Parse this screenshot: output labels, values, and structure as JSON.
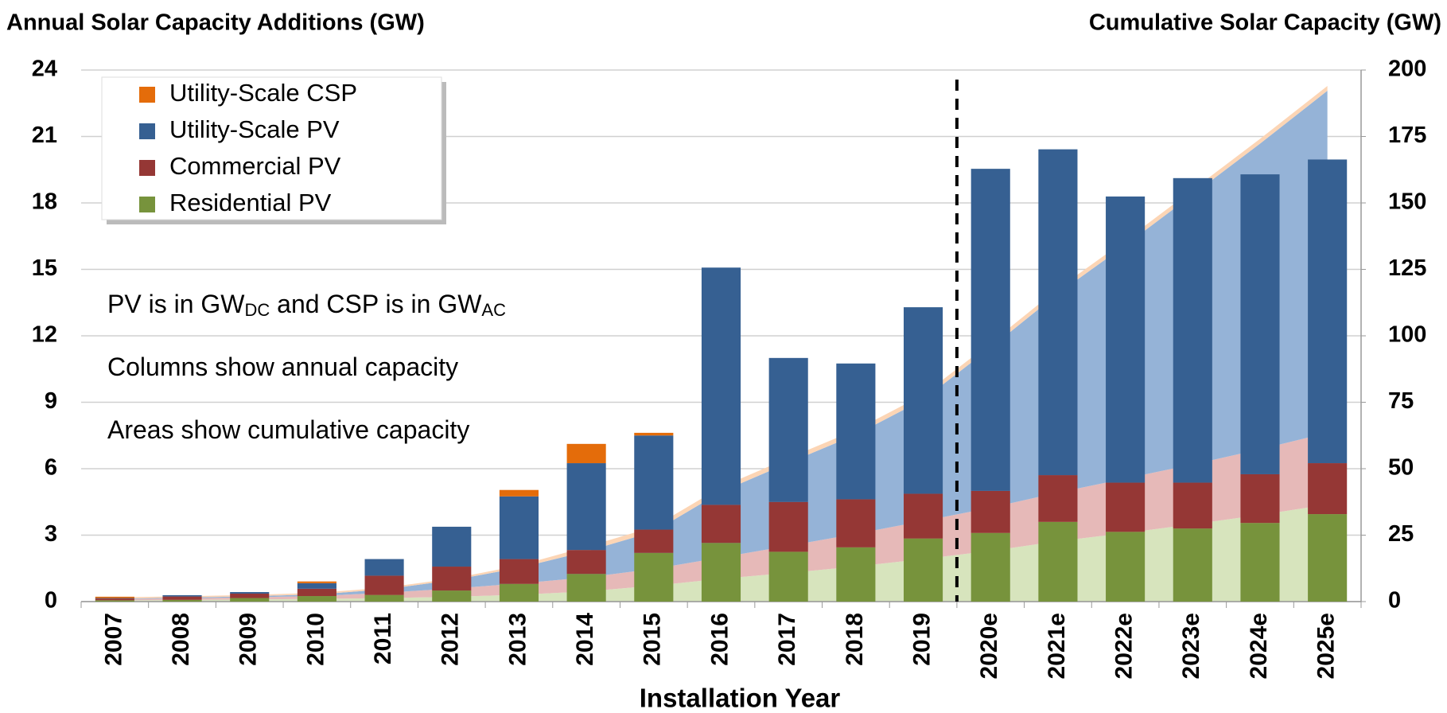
{
  "chart_data": {
    "type": "bar",
    "stacked": true,
    "title": "Annual Solar Capacity Additions (GW)",
    "y2_title": "Cumulative Solar Capacity (GW)",
    "x_label": "Installation Year",
    "annotations": [
      [
        "PV is in GW",
        "DC",
        " and CSP is in GW",
        "AC"
      ],
      [
        "Columns show annual capacity"
      ],
      [
        "Areas show cumulative capacity"
      ]
    ],
    "categories": [
      "2007",
      "2008",
      "2009",
      "2010",
      "2011",
      "2012",
      "2013",
      "2014",
      "2015",
      "2016",
      "2017",
      "2018",
      "2019",
      "2020e",
      "2021e",
      "2022e",
      "2023e",
      "2024e",
      "2025e"
    ],
    "series": [
      {
        "name": "Residential PV",
        "color": "#77933c",
        "values": [
          0.06,
          0.08,
          0.16,
          0.25,
          0.3,
          0.5,
          0.8,
          1.25,
          2.2,
          2.65,
          2.25,
          2.45,
          2.85,
          3.1,
          3.6,
          3.15,
          3.3,
          3.55,
          3.95
        ]
      },
      {
        "name": "Commercial PV",
        "color": "#953735",
        "values": [
          0.08,
          0.15,
          0.2,
          0.33,
          0.87,
          1.08,
          1.12,
          1.08,
          1.05,
          1.72,
          2.25,
          2.17,
          2.02,
          1.9,
          2.11,
          2.22,
          2.07,
          2.2,
          2.3
        ]
      },
      {
        "name": "Utility-Scale PV",
        "color": "#366092",
        "values": [
          0.02,
          0.06,
          0.07,
          0.25,
          0.75,
          1.8,
          2.83,
          3.92,
          4.25,
          10.71,
          6.5,
          6.13,
          8.42,
          14.54,
          14.71,
          12.92,
          13.75,
          13.54,
          13.71
        ]
      },
      {
        "name": "Utility-Scale CSP",
        "color": "#e46c0a",
        "values": [
          0.06,
          0,
          0,
          0.08,
          0,
          0,
          0.29,
          0.87,
          0.12,
          0,
          0,
          0,
          0,
          0,
          0,
          0,
          0,
          0,
          0
        ]
      }
    ],
    "cumulative_series": [
      {
        "color": "#d7e4bd",
        "axis": "y2",
        "values": [
          0.5,
          0.6,
          0.8,
          1.0,
          1.3,
          1.8,
          2.6,
          3.8,
          6.0,
          8.6,
          10.8,
          13.2,
          16.0,
          19.1,
          22.7,
          25.8,
          29.1,
          32.6,
          36.5
        ]
      },
      {
        "color": "#e6b9b8",
        "axis": "y2",
        "values": [
          0.4,
          0.6,
          0.8,
          1.1,
          2.0,
          3.1,
          4.2,
          5.3,
          6.3,
          8.0,
          10.2,
          12.3,
          14.3,
          16.2,
          18.3,
          20.5,
          22.5,
          24.7,
          27.0
        ]
      },
      {
        "color": "#95b3d7",
        "axis": "y2",
        "values": [
          0.2,
          0.3,
          0.4,
          0.6,
          1.3,
          3.1,
          5.9,
          9.8,
          14.0,
          24.7,
          31.2,
          37.3,
          45.7,
          60.2,
          74.9,
          87.8,
          101.5,
          115.0,
          128.7
        ]
      },
      {
        "color": "#fcd5b5",
        "axis": "y2",
        "values": [
          0.5,
          0.5,
          0.5,
          0.6,
          0.6,
          0.6,
          0.9,
          1.7,
          1.8,
          1.8,
          1.8,
          1.8,
          1.8,
          1.8,
          1.8,
          1.8,
          1.8,
          1.8,
          1.8
        ]
      }
    ],
    "ylim": [
      0,
      24
    ],
    "yticks": [
      0,
      3,
      6,
      9,
      12,
      15,
      18,
      21,
      24
    ],
    "y2lim": [
      0,
      200
    ],
    "y2ticks": [
      0,
      25,
      50,
      75,
      100,
      125,
      150,
      175,
      200
    ],
    "grid": true,
    "legend": "upper left"
  }
}
